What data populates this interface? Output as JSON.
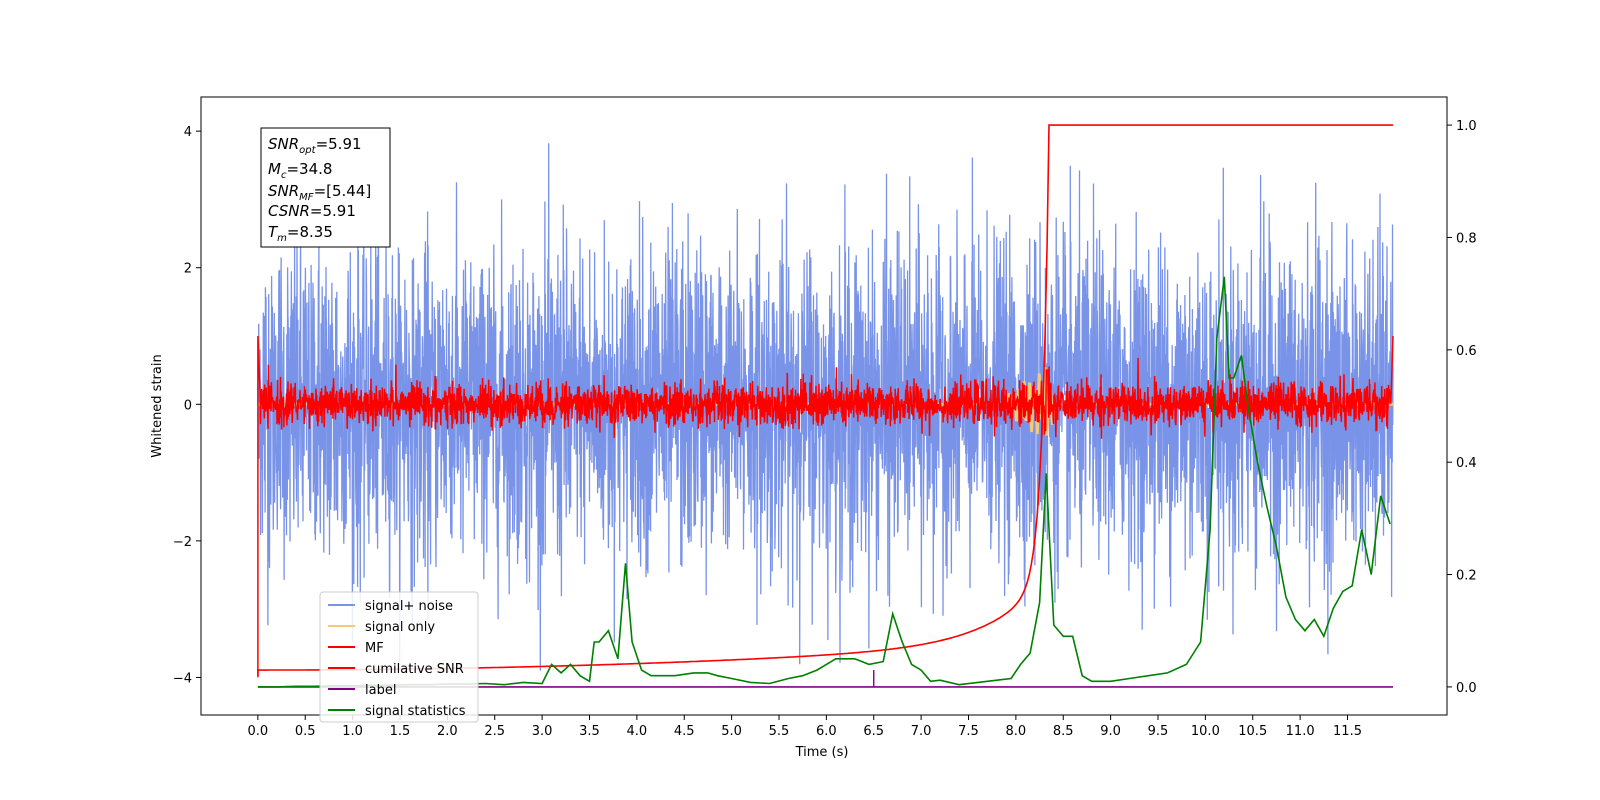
{
  "chart_data": {
    "type": "line",
    "xlabel": "Time (s)",
    "ylabel": "Whitened strain",
    "xlim": [
      -0.6,
      12.55
    ],
    "ylim": [
      -4.55,
      4.5
    ],
    "y2lim": [
      -0.05,
      1.05
    ],
    "x_ticks": [
      "0.0",
      "0.5",
      "1.0",
      "1.5",
      "2.0",
      "2.5",
      "3.0",
      "3.5",
      "4.0",
      "4.5",
      "5.0",
      "5.5",
      "6.0",
      "6.5",
      "7.0",
      "7.5",
      "8.0",
      "8.5",
      "9.0",
      "9.5",
      "10.0",
      "10.5",
      "11.0",
      "11.5"
    ],
    "y_ticks": [
      "4",
      "2",
      "0",
      "−2",
      "−4"
    ],
    "y2_ticks": [
      "1.0",
      "0.8",
      "0.6",
      "0.4",
      "0.2",
      "0.0"
    ],
    "grid": false,
    "legend_position": "lower-left",
    "annotation": {
      "snr_opt": {
        "sym": "SNR",
        "sub": "opt",
        "val": "=5.91"
      },
      "mc": {
        "sym": "M",
        "sub": "c",
        "val": "=34.8"
      },
      "snr_mf": {
        "sym": "SNR",
        "sub": "MF",
        "val": "=[5.44]"
      },
      "csnr": {
        "sym": "CSNR",
        "sub": "",
        "val": "=5.91"
      },
      "tm": {
        "sym": "T",
        "sub": "m",
        "val": "=8.35"
      }
    },
    "series": [
      {
        "name": "signal+ noise",
        "color": "#7893e8",
        "axis": "left",
        "amplitude_range": [
          -3.9,
          4.1
        ]
      },
      {
        "name": "signal only",
        "color": "#f5c97a",
        "axis": "left",
        "peak_time": 8.35
      },
      {
        "name": "MF",
        "color": "#ff0000",
        "axis": "left",
        "amplitude_range": [
          -4.0,
          1.0
        ]
      },
      {
        "name": "cumilative SNR",
        "color": "#ff0000",
        "axis": "right",
        "x": [
          0.0,
          1.0,
          2.0,
          3.0,
          4.0,
          5.0,
          6.0,
          7.0,
          7.5,
          8.0,
          8.2,
          8.3,
          8.35,
          11.98
        ],
        "y": [
          0.03,
          0.036,
          0.043,
          0.05,
          0.058,
          0.068,
          0.083,
          0.11,
          0.14,
          0.2,
          0.28,
          0.55,
          1.0,
          1.0
        ]
      },
      {
        "name": "label",
        "color": "#800080",
        "axis": "right",
        "x": [
          0.0,
          6.49,
          6.5,
          6.51,
          11.98
        ],
        "y": [
          0.0,
          0.0,
          0.0,
          0.0,
          0.0
        ]
      },
      {
        "name": "signal statistics",
        "color": "#008000",
        "axis": "right",
        "x": [
          0.0,
          0.2,
          0.4,
          0.6,
          0.8,
          1.0,
          1.2,
          1.4,
          1.6,
          1.8,
          2.0,
          2.2,
          2.4,
          2.6,
          2.8,
          3.0,
          3.1,
          3.2,
          3.3,
          3.4,
          3.5,
          3.55,
          3.6,
          3.7,
          3.8,
          3.88,
          3.95,
          4.05,
          4.15,
          4.25,
          4.4,
          4.6,
          4.75,
          4.85,
          5.0,
          5.2,
          5.4,
          5.6,
          5.75,
          5.9,
          6.0,
          6.1,
          6.3,
          6.45,
          6.6,
          6.7,
          6.8,
          6.9,
          7.0,
          7.1,
          7.2,
          7.4,
          7.6,
          7.8,
          7.95,
          8.05,
          8.15,
          8.25,
          8.32,
          8.4,
          8.5,
          8.6,
          8.7,
          8.8,
          9.0,
          9.2,
          9.4,
          9.6,
          9.8,
          9.95,
          10.05,
          10.12,
          10.2,
          10.25,
          10.3,
          10.38,
          10.45,
          10.55,
          10.65,
          10.75,
          10.85,
          10.95,
          11.05,
          11.15,
          11.25,
          11.35,
          11.45,
          11.55,
          11.65,
          11.75,
          11.85,
          11.95
        ],
        "y": [
          0.0,
          0.0,
          0.001,
          0.001,
          0.002,
          0.002,
          0.003,
          0.003,
          0.004,
          0.004,
          0.005,
          0.005,
          0.006,
          0.004,
          0.008,
          0.006,
          0.04,
          0.025,
          0.04,
          0.02,
          0.01,
          0.08,
          0.08,
          0.1,
          0.05,
          0.22,
          0.08,
          0.03,
          0.02,
          0.02,
          0.02,
          0.025,
          0.025,
          0.02,
          0.015,
          0.008,
          0.006,
          0.015,
          0.02,
          0.03,
          0.04,
          0.05,
          0.05,
          0.04,
          0.045,
          0.13,
          0.08,
          0.04,
          0.03,
          0.01,
          0.012,
          0.004,
          0.008,
          0.012,
          0.015,
          0.04,
          0.06,
          0.15,
          0.38,
          0.11,
          0.09,
          0.09,
          0.02,
          0.01,
          0.01,
          0.015,
          0.02,
          0.025,
          0.04,
          0.08,
          0.28,
          0.62,
          0.73,
          0.55,
          0.55,
          0.59,
          0.5,
          0.4,
          0.32,
          0.25,
          0.16,
          0.12,
          0.1,
          0.12,
          0.09,
          0.14,
          0.17,
          0.18,
          0.28,
          0.2,
          0.34,
          0.29
        ]
      }
    ]
  }
}
